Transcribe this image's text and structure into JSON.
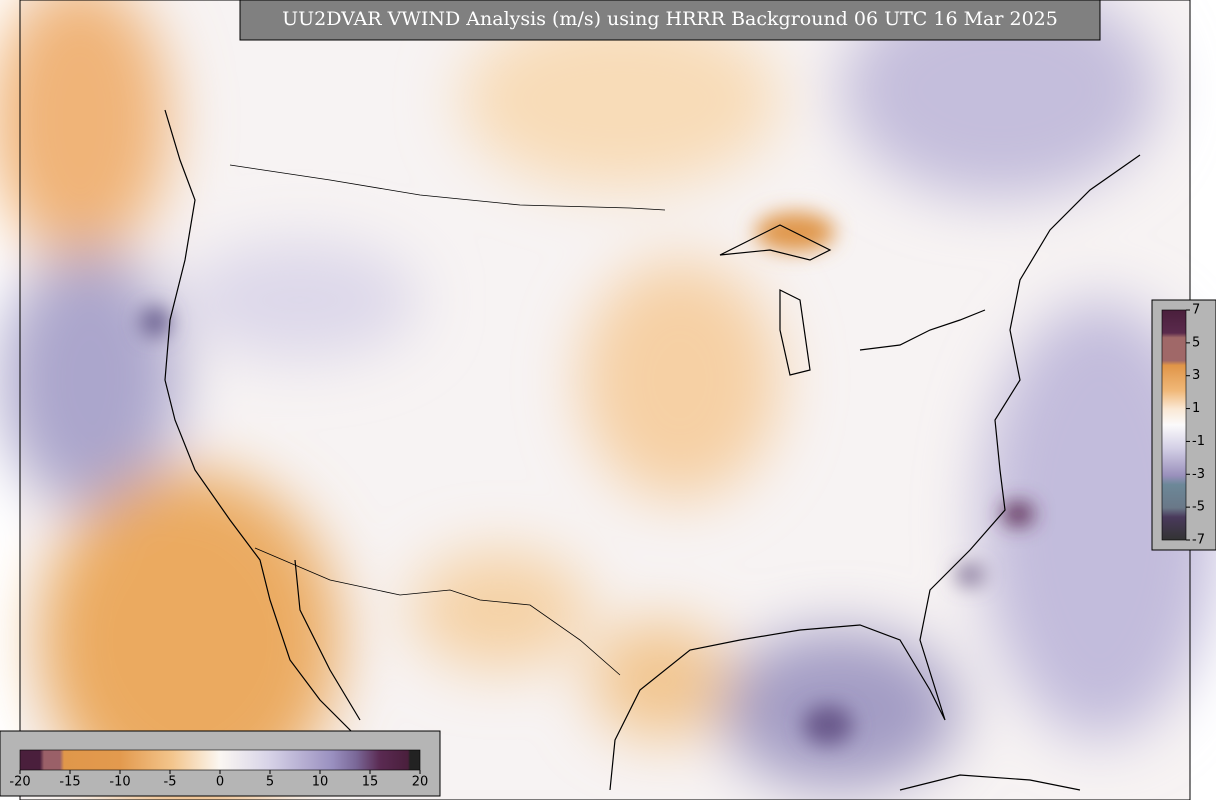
{
  "title": "UU2DVAR VWIND Analysis (m/s) using HRRR Background 06 UTC 16 Mar 2025",
  "colorbar_horizontal": {
    "ticks": [
      -20,
      -15,
      -10,
      -5,
      0,
      5,
      10,
      15,
      20
    ]
  },
  "colorbar_vertical": {
    "ticks": [
      7,
      5,
      3,
      1,
      -1,
      -3,
      -5,
      -7
    ]
  }
}
